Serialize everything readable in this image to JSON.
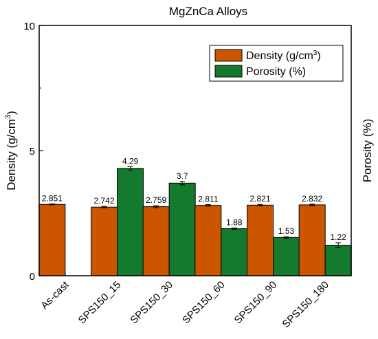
{
  "chart_data": {
    "type": "bar",
    "title": "MgZnCa Alloys",
    "ylabel": "Density (g/cm³)",
    "ylabel_base": "Density (g/cm",
    "ylabel_sup": "3",
    "ylabel_end": ")",
    "y2label": "Porosity (%)",
    "ylim": [
      0,
      10
    ],
    "yticks": [
      0,
      5,
      10
    ],
    "categories": [
      "As-cast",
      "SPS150_15",
      "SPS150_30",
      "SPS150_60",
      "SPS150_90",
      "SPS150_180"
    ],
    "series": [
      {
        "name": "Density (g/cm³)",
        "legend_base": "Density (g/cm",
        "legend_sup": "3",
        "legend_end": ")",
        "color": "#cc5500",
        "values": [
          2.851,
          2.742,
          2.759,
          2.811,
          2.821,
          2.832
        ],
        "labels": [
          "2.851",
          "2.742",
          "2.759",
          "2.811",
          "2.821",
          "2.832"
        ],
        "errors": [
          0.02,
          0.03,
          0.04,
          0.03,
          0.03,
          0.03
        ]
      },
      {
        "name": "Porosity (%)",
        "color": "#147a2e",
        "values": [
          null,
          4.29,
          3.7,
          1.88,
          1.53,
          1.22
        ],
        "labels": [
          "",
          "4.29",
          "3.7",
          "1.88",
          "1.53",
          "1.22"
        ],
        "errors": [
          0,
          0.07,
          0.07,
          0.03,
          0.03,
          0.1
        ]
      }
    ],
    "legend_position": "top-right",
    "grid": false
  }
}
